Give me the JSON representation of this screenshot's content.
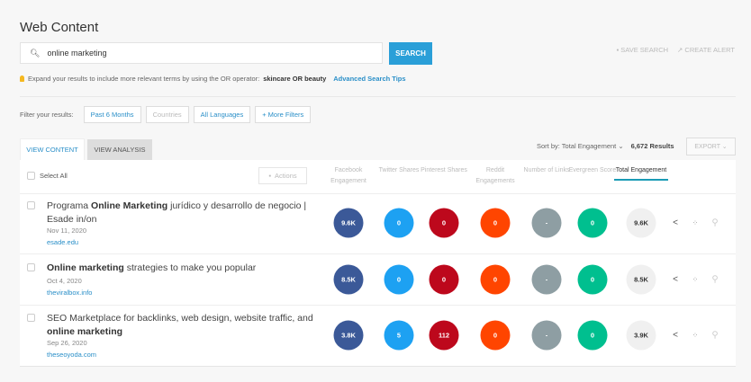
{
  "title": "Web Content",
  "search": {
    "value": "online marketing",
    "button": "SEARCH",
    "save": "SAVE SEARCH",
    "alert": "CREATE ALERT"
  },
  "tip": {
    "text": "Expand your results to include more relevant terms by using the OR operator:",
    "example": "skincare OR beauty",
    "link": "Advanced Search Tips"
  },
  "filters": {
    "label": "Filter your results:",
    "items": [
      "Past 6 Months",
      "Countries",
      "All Languages",
      "+ More Filters"
    ]
  },
  "tabs": [
    "VIEW CONTENT",
    "VIEW ANALYSIS"
  ],
  "sort": {
    "label": "Sort by: Total Engagement ⌄",
    "results": "6,672 Results",
    "export": "EXPORT ⌄"
  },
  "table": {
    "select_all": "Select All",
    "actions": "Actions",
    "columns": [
      "Facebook Engagement",
      "Twitter Shares",
      "Pinterest Shares",
      "Reddit Engagements",
      "Number of Links",
      "Evergreen Score",
      "Total Engagement"
    ],
    "colors": [
      "#3b5998",
      "#1da1f2",
      "#bd081c",
      "#ff4500",
      "#8e9ea3",
      "#00bf8f",
      "#f0f0f0"
    ],
    "rows": [
      {
        "pre": "Programa ",
        "bold": "Online Marketing",
        "post": " jurídico y desarrollo de negocio | Esade in/on",
        "date": "Nov 11, 2020",
        "domain": "esade.edu",
        "values": [
          "9.6K",
          "0",
          "0",
          "0",
          "-",
          "0",
          "9.6K"
        ]
      },
      {
        "pre": "",
        "bold": "Online marketing",
        "post": " strategies to make you popular",
        "date": "Oct 4, 2020",
        "domain": "theviralbox.info",
        "values": [
          "8.5K",
          "0",
          "0",
          "0",
          "-",
          "0",
          "8.5K"
        ]
      },
      {
        "pre": "SEO Marketplace for backlinks, web design, website traffic, and ",
        "bold": "online marketing",
        "post": "",
        "date": "Sep 26, 2020",
        "domain": "theseoyoda.com",
        "values": [
          "3.8K",
          "5",
          "112",
          "0",
          "-",
          "0",
          "3.9K"
        ]
      }
    ]
  }
}
